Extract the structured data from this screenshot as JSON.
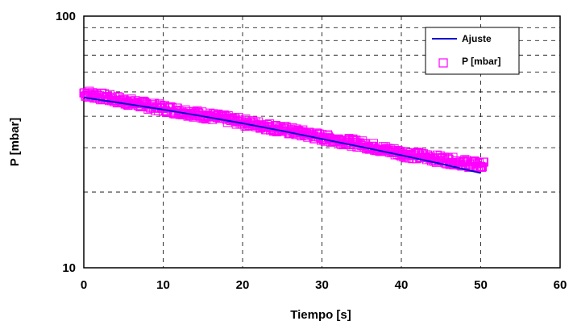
{
  "chart_data": {
    "type": "scatter",
    "xlabel": "Tiempo [s]",
    "ylabel": "P [mbar]",
    "xlim": [
      0,
      60
    ],
    "ylim": [
      10,
      100
    ],
    "y_scale": "log",
    "x_ticks": [
      "0",
      "10",
      "20",
      "30",
      "40",
      "50",
      "60"
    ],
    "y_ticks": [
      "10",
      "100"
    ],
    "grid": true,
    "legend_position": "top-right",
    "series": [
      {
        "name": "Ajuste",
        "kind": "line",
        "color": "#0000cc",
        "x": [
          0,
          5,
          10,
          15,
          20,
          25,
          30,
          35,
          40,
          45,
          50
        ],
        "y": [
          47.5,
          45.0,
          42.5,
          40.0,
          37.5,
          35.0,
          32.5,
          30.2,
          28.0,
          25.9,
          23.8
        ]
      },
      {
        "name": "P [mbar]",
        "kind": "scatter",
        "color": "#ff00ff",
        "x": [
          0,
          5,
          10,
          15,
          20,
          25,
          30,
          35,
          40,
          45,
          50,
          50.5
        ],
        "y": [
          49.5,
          46.0,
          43.0,
          40.5,
          38.0,
          35.5,
          33.0,
          31.0,
          28.5,
          27.0,
          25.5,
          25.5
        ]
      }
    ]
  }
}
